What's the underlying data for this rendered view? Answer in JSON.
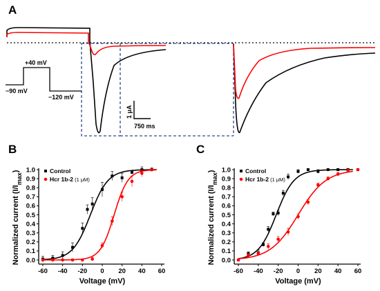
{
  "panels": {
    "a": "A",
    "b": "B",
    "c": "C"
  },
  "traces_panel": {
    "protocol_labels": {
      "hold": "−90 mV",
      "step": "+40 mV",
      "tail": "−120 mV"
    },
    "scale_bar": {
      "current": "1 μA",
      "time": "750 ms"
    },
    "colors": {
      "control": "#000000",
      "toxin": "#ff0000",
      "zoom_box": "#2a4a8a"
    }
  },
  "chart_data": [
    {
      "type": "scatter",
      "panel": "B",
      "xlabel": "Voltage (mV)",
      "ylabel_main": "Normalized current (I/I",
      "ylabel_sub": "max",
      "ylabel_close": ")",
      "xlim": [
        -60,
        60
      ],
      "ylim": [
        0,
        1.0
      ],
      "xticks": [
        -60,
        -40,
        -20,
        0,
        20,
        40,
        60
      ],
      "yticks": [
        0.0,
        0.1,
        0.2,
        0.3,
        0.4,
        0.5,
        0.6,
        0.7,
        0.8,
        0.9,
        1.0
      ],
      "legend_position": "top-left",
      "series": [
        {
          "name": "Control",
          "color": "#000000",
          "marker": "square",
          "x": [
            -60,
            -50,
            -40,
            -30,
            -20,
            -15,
            -10,
            0,
            10,
            20,
            30,
            40,
            50
          ],
          "y": [
            0.01,
            0.02,
            0.05,
            0.14,
            0.35,
            0.56,
            0.62,
            0.78,
            0.93,
            0.91,
            0.97,
            1.0,
            1.0
          ],
          "err": [
            0.03,
            0.03,
            0.04,
            0.05,
            0.06,
            0.05,
            0.07,
            0.08,
            0.05,
            0.05,
            0.02,
            0.03,
            0.02
          ],
          "fit": {
            "v_half": -12,
            "slope": 9
          }
        },
        {
          "name": "Hcr 1b-2",
          "name_suffix": "(1 μM)",
          "color": "#ff0000",
          "marker": "circle",
          "x": [
            -60,
            -50,
            -40,
            -30,
            -20,
            -10,
            0,
            10,
            20,
            30,
            40,
            50
          ],
          "y": [
            0.0,
            0.0,
            0.0,
            0.0,
            0.0,
            0.01,
            0.16,
            0.43,
            0.7,
            0.87,
            0.96,
            1.0
          ],
          "err": [
            0.01,
            0.01,
            0.01,
            0.01,
            0.01,
            0.02,
            0.03,
            0.05,
            0.05,
            0.06,
            0.04,
            0.01
          ],
          "fit": {
            "v_half": 12,
            "slope": 7
          }
        }
      ]
    },
    {
      "type": "scatter",
      "panel": "C",
      "xlabel": "Voltage (mV)",
      "ylabel_main": "Normalized current (I/I",
      "ylabel_sub": "max",
      "ylabel_close": ")",
      "xlim": [
        -60,
        60
      ],
      "ylim": [
        0,
        1.0
      ],
      "xticks": [
        -60,
        -40,
        -20,
        0,
        20,
        40,
        60
      ],
      "yticks": [
        0.0,
        0.1,
        0.2,
        0.3,
        0.4,
        0.5,
        0.6,
        0.7,
        0.8,
        0.9,
        1.0
      ],
      "legend_position": "top-left",
      "series": [
        {
          "name": "Control",
          "color": "#000000",
          "marker": "square",
          "x": [
            -60,
            -50,
            -40,
            -35,
            -30,
            -25,
            -20,
            -15,
            -10,
            0,
            10,
            20,
            30,
            40,
            50,
            60
          ],
          "y": [
            0.0,
            0.07,
            0.08,
            0.17,
            0.34,
            0.51,
            0.52,
            0.74,
            0.92,
            0.98,
            1.0,
            0.98,
            1.0,
            1.0,
            1.0,
            1.0
          ],
          "err": [
            0.01,
            0.02,
            0.03,
            0.02,
            0.03,
            0.02,
            0.03,
            0.03,
            0.03,
            0.02,
            0.01,
            0.02,
            0.01,
            0.01,
            0.01,
            0.01
          ],
          "fit": {
            "v_half": -22,
            "slope": 9
          }
        },
        {
          "name": "Hcr 1b-2",
          "name_suffix": "(1 μM)",
          "color": "#ff0000",
          "marker": "circle",
          "x": [
            -60,
            -50,
            -40,
            -30,
            -20,
            -10,
            0,
            10,
            20,
            30,
            40,
            50,
            60
          ],
          "y": [
            0.0,
            0.05,
            0.07,
            0.15,
            0.23,
            0.31,
            0.48,
            0.64,
            0.83,
            0.9,
            0.95,
            0.99,
            1.0
          ],
          "err": [
            0.01,
            0.02,
            0.02,
            0.03,
            0.03,
            0.04,
            0.03,
            0.03,
            0.02,
            0.02,
            0.02,
            0.01,
            0.01
          ],
          "fit": {
            "v_half": 0,
            "slope": 14
          }
        }
      ]
    }
  ]
}
